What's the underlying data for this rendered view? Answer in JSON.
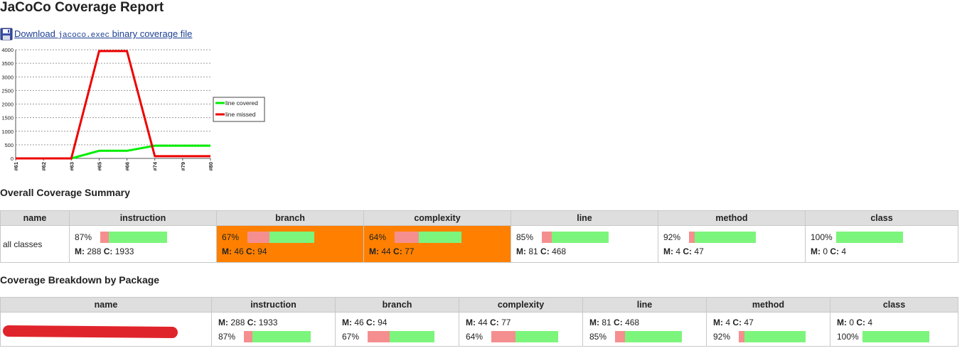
{
  "page": {
    "title": "JaCoCo Coverage Report",
    "download": {
      "prefix": "Download ",
      "code": "jacoco.exec",
      "suffix": " binary coverage file"
    }
  },
  "colors": {
    "covered_bar": "#7cf57c",
    "missed_bar": "#f58f8f",
    "highlight": "#ff8000",
    "header_bg": "#dedede",
    "link": "#1c3f94"
  },
  "chart_data": {
    "type": "line",
    "x": [
      "#61",
      "#62",
      "#63",
      "#65",
      "#66",
      "#74",
      "#79",
      "#80"
    ],
    "y_ticks": [
      0,
      500,
      1000,
      1500,
      2000,
      2500,
      3000,
      3500,
      4000
    ],
    "ylim": [
      0,
      4000
    ],
    "grid": true,
    "legend_position": "right",
    "series": [
      {
        "name": "line covered",
        "color": "#00ee00",
        "values": [
          0,
          0,
          0,
          280,
          280,
          468,
          468,
          468
        ]
      },
      {
        "name": "line missed",
        "color": "#ee0000",
        "values": [
          0,
          0,
          0,
          3950,
          3950,
          81,
          81,
          81
        ]
      }
    ]
  },
  "summary": {
    "heading": "Overall Coverage Summary",
    "columns": [
      "name",
      "instruction",
      "branch",
      "complexity",
      "line",
      "method",
      "class"
    ],
    "row": {
      "name": "all classes",
      "metrics": [
        {
          "key": "instruction",
          "pct": "87%",
          "missed_label": "M:",
          "missed": "288",
          "covered_label": "C:",
          "covered": "1933",
          "covered_fraction": 0.87,
          "highlight": false
        },
        {
          "key": "branch",
          "pct": "67%",
          "missed_label": "M:",
          "missed": "46",
          "covered_label": "C:",
          "covered": "94",
          "covered_fraction": 0.67,
          "highlight": true
        },
        {
          "key": "complexity",
          "pct": "64%",
          "missed_label": "M:",
          "missed": "44",
          "covered_label": "C:",
          "covered": "77",
          "covered_fraction": 0.64,
          "highlight": true
        },
        {
          "key": "line",
          "pct": "85%",
          "missed_label": "M:",
          "missed": "81",
          "covered_label": "C:",
          "covered": "468",
          "covered_fraction": 0.85,
          "highlight": false
        },
        {
          "key": "method",
          "pct": "92%",
          "missed_label": "M:",
          "missed": "4",
          "covered_label": "C:",
          "covered": "47",
          "covered_fraction": 0.92,
          "highlight": false
        },
        {
          "key": "class",
          "pct": "100%",
          "missed_label": "M:",
          "missed": "0",
          "covered_label": "C:",
          "covered": "4",
          "covered_fraction": 1.0,
          "highlight": false
        }
      ]
    }
  },
  "breakdown": {
    "heading": "Coverage Breakdown by Package",
    "columns": [
      "name",
      "instruction",
      "branch",
      "complexity",
      "line",
      "method",
      "class"
    ],
    "rows": [
      {
        "name": "",
        "metrics": [
          {
            "key": "instruction",
            "pct": "87%",
            "missed_label": "M:",
            "missed": "288",
            "covered_label": "C:",
            "covered": "1933",
            "covered_fraction": 0.87
          },
          {
            "key": "branch",
            "pct": "67%",
            "missed_label": "M:",
            "missed": "46",
            "covered_label": "C:",
            "covered": "94",
            "covered_fraction": 0.67
          },
          {
            "key": "complexity",
            "pct": "64%",
            "missed_label": "M:",
            "missed": "44",
            "covered_label": "C:",
            "covered": "77",
            "covered_fraction": 0.64
          },
          {
            "key": "line",
            "pct": "85%",
            "missed_label": "M:",
            "missed": "81",
            "covered_label": "C:",
            "covered": "468",
            "covered_fraction": 0.85
          },
          {
            "key": "method",
            "pct": "92%",
            "missed_label": "M:",
            "missed": "4",
            "covered_label": "C:",
            "covered": "47",
            "covered_fraction": 0.92
          },
          {
            "key": "class",
            "pct": "100%",
            "missed_label": "M:",
            "missed": "0",
            "covered_label": "C:",
            "covered": "4",
            "covered_fraction": 1.0
          }
        ]
      }
    ]
  }
}
